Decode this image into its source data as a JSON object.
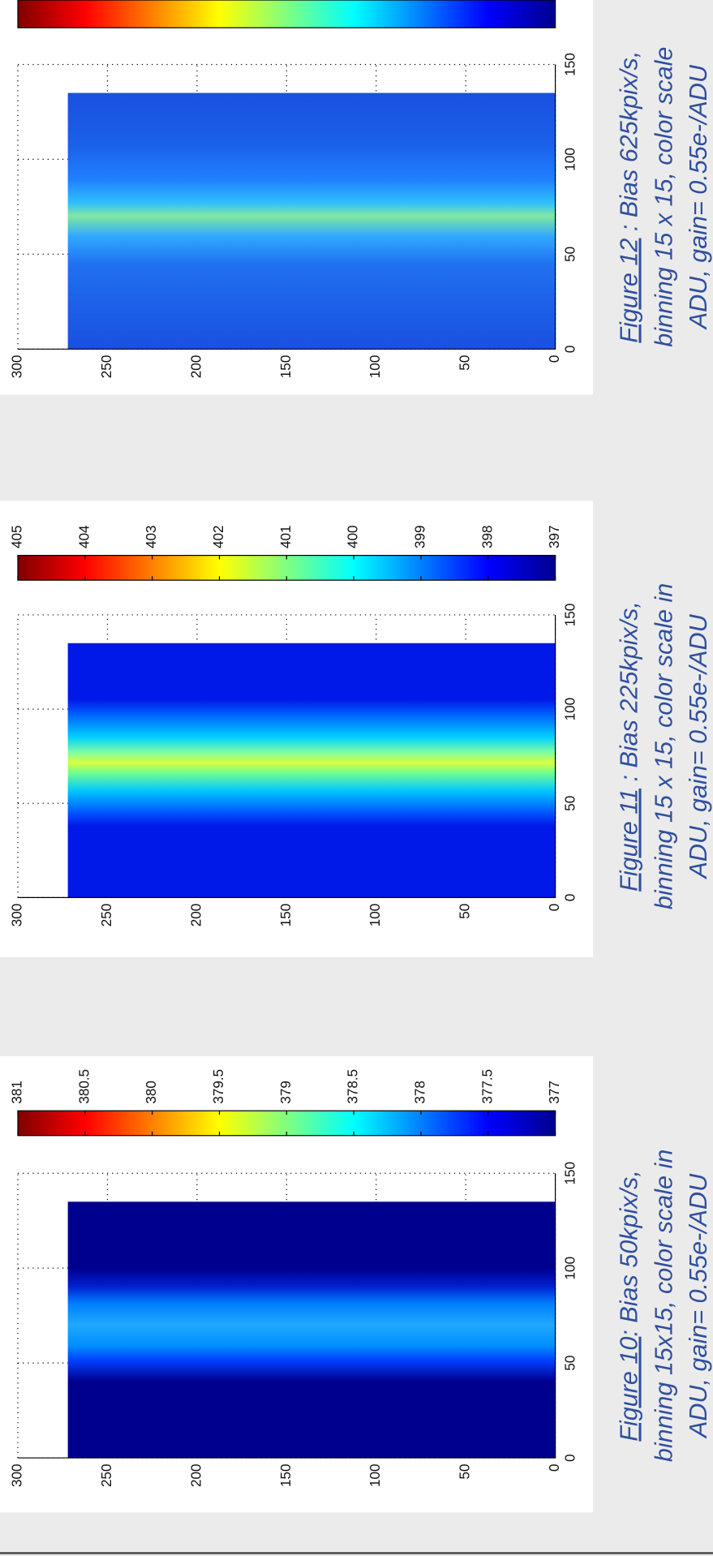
{
  "figures": [
    {
      "caption": {
        "label": "Figure 10",
        "lines": [
          ": Bias 50kpix/s,",
          "binning 15x15, color scale in",
          "ADU, gain= 0.55e-/ADU"
        ]
      },
      "xlim": [
        0,
        150
      ],
      "xticks": [
        0,
        50,
        100,
        150
      ],
      "ylim": [
        0,
        300
      ],
      "yticks": [
        0,
        50,
        100,
        150,
        200,
        250,
        300
      ],
      "colorbar": {
        "lim": [
          377,
          381
        ],
        "ticks": [
          377,
          377.5,
          378,
          378.5,
          379,
          379.5,
          380,
          380.5,
          381
        ]
      }
    },
    {
      "caption": {
        "label": "Figure 11",
        "lines": [
          " : Bias 225kpix/s,",
          "binning 15 x 15, color scale in",
          "ADU, gain= 0.55e-/ADU"
        ]
      },
      "xlim": [
        0,
        150
      ],
      "xticks": [
        0,
        50,
        100,
        150
      ],
      "ylim": [
        0,
        300
      ],
      "yticks": [
        0,
        50,
        100,
        150,
        200,
        250,
        300
      ],
      "colorbar": {
        "lim": [
          397,
          405
        ],
        "ticks": [
          397,
          398,
          399,
          400,
          401,
          402,
          403,
          404,
          405
        ]
      }
    },
    {
      "caption": {
        "label": "Figure 12",
        "lines": [
          " : Bias 625kpix/s,",
          "binning 15 x 15, color scale",
          "ADU, gain= 0.55e-/ADU"
        ]
      },
      "xlim": [
        0,
        150
      ],
      "xticks": [
        0,
        50,
        100,
        150
      ],
      "ylim": [
        0,
        300
      ],
      "yticks": [
        0,
        50,
        100,
        150,
        200,
        250,
        300
      ]
    }
  ]
}
